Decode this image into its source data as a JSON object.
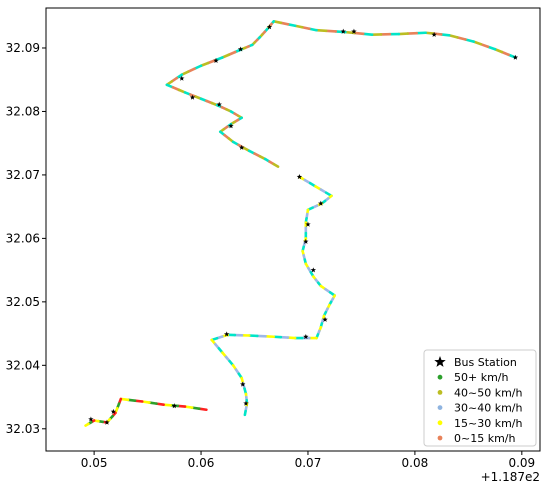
{
  "chart_data": {
    "type": "scatter",
    "title": "",
    "xlabel": "",
    "ylabel": "",
    "x_offset_label": "+1.187e2",
    "xlim": [
      0.0455,
      0.0917
    ],
    "ylim": [
      32.0265,
      32.0963
    ],
    "xticks": [
      0.05,
      0.06,
      0.07,
      0.08,
      0.09
    ],
    "xtick_labels": [
      "0.05",
      "0.06",
      "0.07",
      "0.08",
      "0.09"
    ],
    "yticks": [
      32.03,
      32.04,
      32.05,
      32.06,
      32.07,
      32.08,
      32.09
    ],
    "ytick_labels": [
      "32.03",
      "32.04",
      "32.05",
      "32.06",
      "32.07",
      "32.08",
      "32.09"
    ],
    "grid": false,
    "legend_position": "lower-right",
    "speed_colors": {
      "50+ km/h": "#2ca02c",
      "40~50 km/h": "#bcbd22",
      "30~40 km/h": "#8fb4e0",
      "15~30 km/h": "#ffff00",
      "0~15 km/h": "#e8825a"
    },
    "track_colors": [
      "#00e5c8",
      "#ffff00",
      "#ff2020",
      "#e8825a",
      "#9db8e8",
      "#2ca02c",
      "#bcbd22"
    ],
    "route": [
      [
        0.0894,
        32.0885
      ],
      [
        0.0875,
        32.0898
      ],
      [
        0.0855,
        32.091
      ],
      [
        0.0832,
        32.092
      ],
      [
        0.081,
        32.0924
      ],
      [
        0.0785,
        32.0922
      ],
      [
        0.076,
        32.0921
      ],
      [
        0.0735,
        32.0925
      ],
      [
        0.0708,
        32.0928
      ],
      [
        0.0688,
        32.0935
      ],
      [
        0.0668,
        32.0942
      ],
      [
        0.0662,
        32.093
      ],
      [
        0.0655,
        32.0917
      ],
      [
        0.0648,
        32.0905
      ],
      [
        0.0638,
        32.0898
      ],
      [
        0.062,
        32.0885
      ],
      [
        0.06,
        32.0872
      ],
      [
        0.0582,
        32.0858
      ],
      [
        0.0568,
        32.0842
      ],
      [
        0.0585,
        32.083
      ],
      [
        0.06,
        32.082
      ],
      [
        0.0615,
        32.081
      ],
      [
        0.0628,
        32.08
      ],
      [
        0.0638,
        32.079
      ],
      [
        0.0628,
        32.078
      ],
      [
        0.0618,
        32.0768
      ],
      [
        0.063,
        32.0752
      ],
      [
        0.0645,
        32.0738
      ],
      [
        0.066,
        32.0725
      ],
      [
        0.0672,
        32.0713
      ]
    ],
    "route2": [
      [
        0.0692,
        32.0697
      ],
      [
        0.0707,
        32.0682
      ],
      [
        0.0722,
        32.0667
      ],
      [
        0.0713,
        32.0655
      ],
      [
        0.07,
        32.0645
      ],
      [
        0.0698,
        32.0625
      ],
      [
        0.0698,
        32.06
      ],
      [
        0.0695,
        32.058
      ],
      [
        0.0698,
        32.056
      ],
      [
        0.0705,
        32.054
      ],
      [
        0.0712,
        32.0525
      ],
      [
        0.0725,
        32.051
      ],
      [
        0.072,
        32.0495
      ],
      [
        0.0715,
        32.0478
      ],
      [
        0.0712,
        32.046
      ],
      [
        0.0708,
        32.0443
      ],
      [
        0.0688,
        32.0443
      ],
      [
        0.0668,
        32.0445
      ],
      [
        0.0645,
        32.0447
      ],
      [
        0.0625,
        32.0448
      ],
      [
        0.061,
        32.044
      ],
      [
        0.062,
        32.042
      ],
      [
        0.063,
        32.04
      ],
      [
        0.0638,
        32.038
      ],
      [
        0.0642,
        32.0355
      ],
      [
        0.0643,
        32.034
      ],
      [
        0.0641,
        32.0322
      ]
    ],
    "route3": [
      [
        0.0605,
        32.033
      ],
      [
        0.0585,
        32.0335
      ],
      [
        0.0565,
        32.0338
      ],
      [
        0.0545,
        32.0343
      ],
      [
        0.0525,
        32.0347
      ],
      [
        0.052,
        32.0325
      ],
      [
        0.0512,
        32.031
      ],
      [
        0.05,
        32.0313
      ],
      [
        0.0492,
        32.0305
      ]
    ],
    "bus_stations": [
      [
        0.0894,
        32.0885
      ],
      [
        0.0818,
        32.0921
      ],
      [
        0.0743,
        32.0926
      ],
      [
        0.0733,
        32.0926
      ],
      [
        0.0664,
        32.0933
      ],
      [
        0.0637,
        32.0898
      ],
      [
        0.0614,
        32.088
      ],
      [
        0.0582,
        32.0852
      ],
      [
        0.0592,
        32.0822
      ],
      [
        0.0617,
        32.0811
      ],
      [
        0.0628,
        32.0777
      ],
      [
        0.0638,
        32.0743
      ],
      [
        0.0692,
        32.0697
      ],
      [
        0.0712,
        32.0655
      ],
      [
        0.07,
        32.0622
      ],
      [
        0.0698,
        32.0595
      ],
      [
        0.0705,
        32.055
      ],
      [
        0.0716,
        32.0472
      ],
      [
        0.0698,
        32.0445
      ],
      [
        0.0624,
        32.0449
      ],
      [
        0.0639,
        32.037
      ],
      [
        0.0642,
        32.034
      ],
      [
        0.0575,
        32.0336
      ],
      [
        0.0518,
        32.0327
      ],
      [
        0.0512,
        32.031
      ],
      [
        0.0497,
        32.0315
      ]
    ],
    "legend": [
      {
        "label": "Bus Station",
        "marker": "star",
        "color": "#000000"
      },
      {
        "label": "50+ km/h",
        "marker": "dot",
        "color": "#2ca02c"
      },
      {
        "label": "40~50 km/h",
        "marker": "dot",
        "color": "#bcbd22"
      },
      {
        "label": "30~40 km/h",
        "marker": "dot",
        "color": "#8fb4e0"
      },
      {
        "label": "15~30 km/h",
        "marker": "dot",
        "color": "#ffff00"
      },
      {
        "label": "0~15 km/h",
        "marker": "dot",
        "color": "#e8825a"
      }
    ]
  }
}
